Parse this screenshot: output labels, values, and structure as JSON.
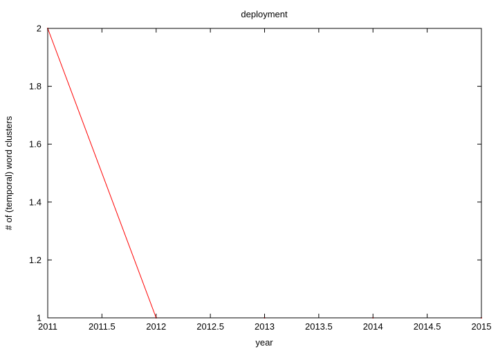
{
  "chart_data": {
    "type": "line",
    "title": "deployment",
    "xlabel": "year",
    "ylabel": "# of (temporal) word clusters",
    "xlim": [
      2011,
      2015
    ],
    "ylim": [
      1,
      2
    ],
    "x_ticks": [
      2011,
      2011.5,
      2012,
      2012.5,
      2013,
      2013.5,
      2014,
      2014.5,
      2015
    ],
    "x_tick_labels": [
      "2011",
      "2011.5",
      "2012",
      "2012.5",
      "2013",
      "2013.5",
      "2014",
      "2014.5",
      "2015"
    ],
    "y_ticks": [
      1,
      1.2,
      1.4,
      1.6,
      1.8,
      2
    ],
    "y_tick_labels": [
      "1",
      "1.2",
      "1.4",
      "1.6",
      "1.8",
      "2"
    ],
    "grid": false,
    "series": [
      {
        "color": "#ff0000",
        "x": [
          2011,
          2012,
          2013,
          2014,
          2015
        ],
        "y": [
          2,
          1,
          1,
          1,
          1
        ]
      }
    ]
  }
}
